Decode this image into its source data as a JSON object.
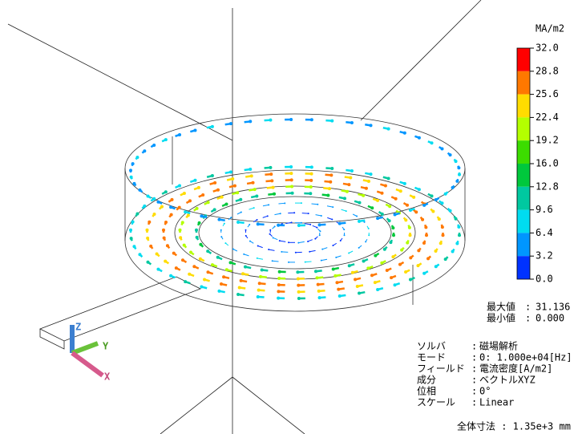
{
  "legend": {
    "unit": "MA/m2",
    "ticks": [
      "32.0",
      "28.8",
      "25.6",
      "22.4",
      "19.2",
      "16.0",
      "12.8",
      "9.6",
      "6.4",
      "3.2",
      "0.0"
    ],
    "colors": [
      "#ff0000",
      "#ff7800",
      "#ffdc00",
      "#b4ff00",
      "#3cdc00",
      "#00c83c",
      "#00c8a0",
      "#00dcf0",
      "#0096ff",
      "#0032ff"
    ]
  },
  "stats": {
    "max_label": "最大値",
    "max_sep": ":",
    "max_value": "31.136",
    "min_label": "最小値",
    "min_sep": ":",
    "min_value": "0.000"
  },
  "info": {
    "rows": [
      [
        "ソルバ",
        ":",
        "磁場解析"
      ],
      [
        "モード",
        ":",
        "0: 1.000e+04[Hz]"
      ],
      [
        "フィールド",
        ":",
        "電流密度[A/m2]"
      ],
      [
        "成分",
        ":",
        "ベクトルXYZ"
      ],
      [
        "位相",
        ":",
        "0°"
      ],
      [
        "スケール",
        ":",
        "Linear"
      ]
    ],
    "size": "全体寸法 : 1.35e+3 mm"
  },
  "axes": {
    "x": "X",
    "y": "Y",
    "z": "Z"
  }
}
